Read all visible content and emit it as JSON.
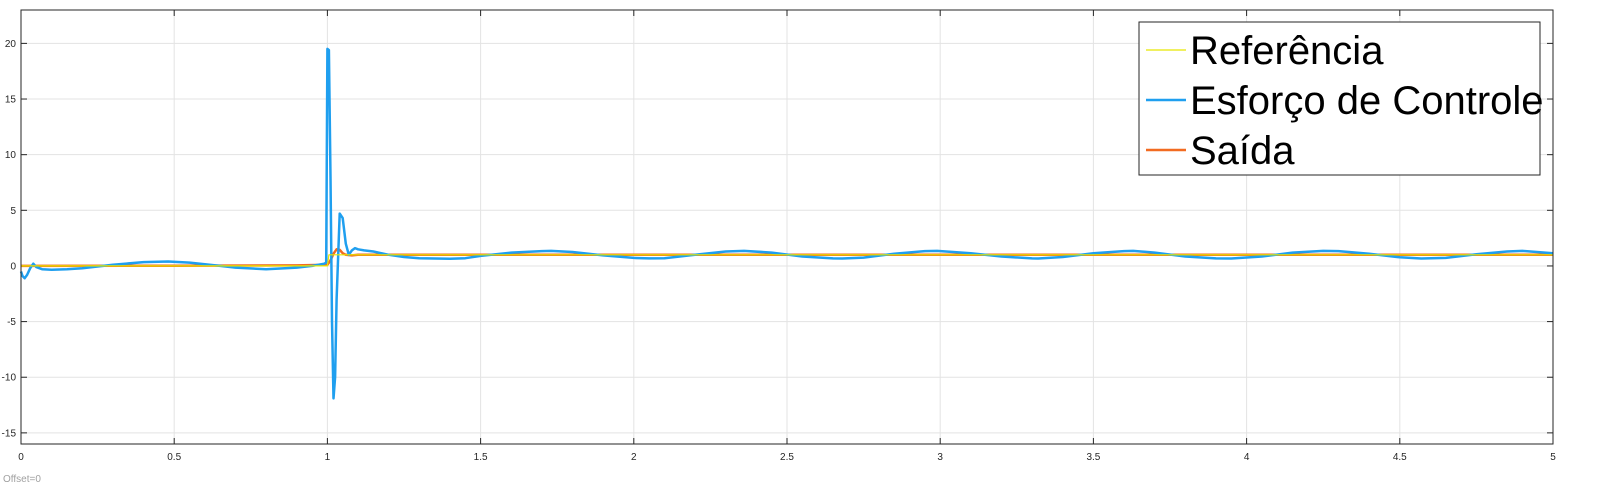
{
  "footer": {
    "offset_label": "Offset=0"
  },
  "chart_data": {
    "type": "line",
    "title": "",
    "xlabel": "",
    "ylabel": "",
    "xlim": [
      0,
      5
    ],
    "ylim": [
      -16,
      23
    ],
    "grid": true,
    "legend_position": "top-right",
    "x_ticks": [
      0,
      0.5,
      1,
      1.5,
      2,
      2.5,
      3,
      3.5,
      4,
      4.5,
      5
    ],
    "x_tick_labels": [
      "0",
      "0.5",
      "1",
      "1.5",
      "2",
      "2.5",
      "3",
      "3.5",
      "4",
      "4.5",
      "5"
    ],
    "y_ticks": [
      -15,
      -10,
      -5,
      0,
      5,
      10,
      15,
      20
    ],
    "y_tick_labels": [
      "-15",
      "-10",
      "-5",
      "0",
      "5",
      "10",
      "15",
      "20"
    ],
    "series": [
      {
        "name": "Referência",
        "color": "#e8e800",
        "x": [
          0,
          1,
          1.005,
          5
        ],
        "y": [
          0,
          0,
          1,
          1
        ]
      },
      {
        "name": "Esforço de Controle",
        "color": "#1f9fef",
        "x": [
          0,
          0.005,
          0.012,
          0.02,
          0.03,
          0.04,
          0.05,
          0.07,
          0.1,
          0.15,
          0.2,
          0.3,
          0.4,
          0.48,
          0.55,
          0.65,
          0.7,
          0.8,
          0.9,
          0.95,
          0.99,
          0.996,
          1.0,
          1.005,
          1.01,
          1.015,
          1.02,
          1.025,
          1.03,
          1.04,
          1.05,
          1.06,
          1.07,
          1.08,
          1.09,
          1.1,
          1.12,
          1.15,
          1.2,
          1.25,
          1.3,
          1.4,
          1.45,
          1.5,
          1.6,
          1.7,
          1.73,
          1.8,
          1.9,
          2.0,
          2.05,
          2.1,
          2.2,
          2.3,
          2.36,
          2.45,
          2.55,
          2.65,
          2.68,
          2.75,
          2.85,
          2.95,
          2.99,
          3.1,
          3.2,
          3.3,
          3.32,
          3.4,
          3.5,
          3.6,
          3.63,
          3.7,
          3.8,
          3.9,
          3.95,
          4.05,
          4.15,
          4.25,
          4.3,
          4.4,
          4.5,
          4.57,
          4.65,
          4.75,
          4.85,
          4.9,
          5.0
        ],
        "y": [
          -0.5,
          -0.9,
          -1.1,
          -0.8,
          -0.2,
          0.2,
          -0.1,
          -0.3,
          -0.35,
          -0.3,
          -0.2,
          0.1,
          0.35,
          0.4,
          0.3,
          0.0,
          -0.15,
          -0.3,
          -0.15,
          0.0,
          0.2,
          0.3,
          19.5,
          19.4,
          8.0,
          -5.0,
          -11.9,
          -10.0,
          -3.0,
          4.7,
          4.3,
          2.0,
          1.0,
          1.4,
          1.6,
          1.5,
          1.4,
          1.3,
          1.0,
          0.8,
          0.7,
          0.65,
          0.7,
          0.9,
          1.2,
          1.33,
          1.35,
          1.25,
          0.95,
          0.72,
          0.68,
          0.7,
          1.0,
          1.3,
          1.35,
          1.2,
          0.85,
          0.68,
          0.67,
          0.75,
          1.1,
          1.33,
          1.35,
          1.15,
          0.85,
          0.68,
          0.67,
          0.8,
          1.15,
          1.33,
          1.35,
          1.2,
          0.85,
          0.68,
          0.67,
          0.85,
          1.2,
          1.35,
          1.33,
          1.1,
          0.78,
          0.67,
          0.72,
          1.05,
          1.3,
          1.35,
          1.15
        ]
      },
      {
        "name": "Saída",
        "color": "#f26b21",
        "x": [
          0,
          0.5,
          0.9,
          1.0,
          1.01,
          1.02,
          1.03,
          1.04,
          1.05,
          1.06,
          1.08,
          1.1,
          1.15,
          1.2,
          1.5,
          2.0,
          3.0,
          4.0,
          5.0
        ],
        "y": [
          0,
          0.02,
          0.05,
          0.1,
          0.5,
          1.1,
          1.5,
          1.45,
          1.15,
          1.0,
          0.95,
          1.0,
          1.0,
          1.0,
          1.0,
          1.0,
          1.0,
          1.0,
          1.0
        ]
      }
    ]
  }
}
